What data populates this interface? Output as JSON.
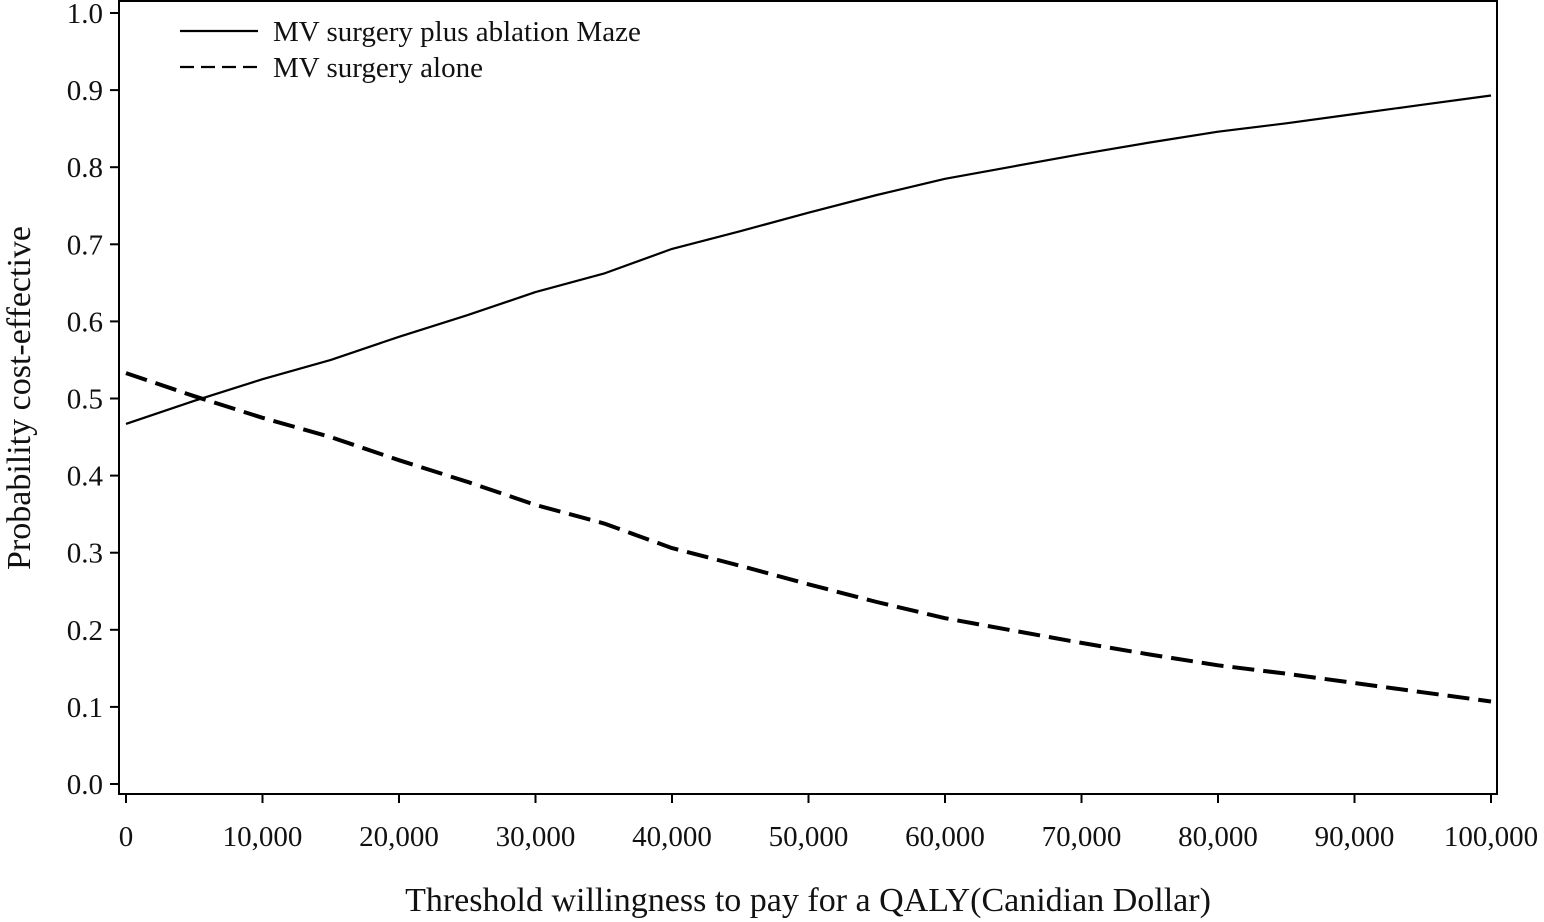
{
  "chart_data": {
    "type": "line",
    "title": "",
    "xlabel": "Threshold willingness to pay for a QALY(Canidian Dollar)",
    "ylabel": "Probability cost-effective",
    "xlim": [
      0,
      100000
    ],
    "ylim": [
      0,
      1.0
    ],
    "xticks": [
      0,
      10000,
      20000,
      30000,
      40000,
      50000,
      60000,
      70000,
      80000,
      90000,
      100000
    ],
    "xtick_labels": [
      "0",
      "10,000",
      "20,000",
      "30,000",
      "40,000",
      "50,000",
      "60,000",
      "70,000",
      "80,000",
      "90,000",
      "100,000"
    ],
    "yticks": [
      0.0,
      0.1,
      0.2,
      0.3,
      0.4,
      0.5,
      0.6,
      0.7,
      0.8,
      0.9,
      1.0
    ],
    "ytick_labels": [
      "0.0",
      "0.1",
      "0.2",
      "0.3",
      "0.4",
      "0.5",
      "0.6",
      "0.7",
      "0.8",
      "0.9",
      "1.0"
    ],
    "grid": false,
    "legend_position": "top-left",
    "series": [
      {
        "name": "MV surgery plus ablation Maze",
        "style": "solid",
        "color": "#000000",
        "x": [
          0,
          5000,
          10000,
          15000,
          20000,
          25000,
          30000,
          35000,
          40000,
          45000,
          50000,
          55000,
          60000,
          65000,
          70000,
          75000,
          80000,
          85000,
          90000,
          95000,
          100000
        ],
        "y": [
          0.467,
          0.497,
          0.525,
          0.55,
          0.58,
          0.608,
          0.638,
          0.662,
          0.694,
          0.717,
          0.741,
          0.764,
          0.785,
          0.801,
          0.817,
          0.832,
          0.846,
          0.857,
          0.869,
          0.881,
          0.893
        ]
      },
      {
        "name": "MV surgery alone",
        "style": "dashed",
        "color": "#000000",
        "x": [
          0,
          5000,
          10000,
          15000,
          20000,
          25000,
          30000,
          35000,
          40000,
          45000,
          50000,
          55000,
          60000,
          65000,
          70000,
          75000,
          80000,
          85000,
          90000,
          95000,
          100000
        ],
        "y": [
          0.533,
          0.503,
          0.475,
          0.45,
          0.42,
          0.392,
          0.362,
          0.338,
          0.306,
          0.283,
          0.259,
          0.236,
          0.215,
          0.199,
          0.183,
          0.168,
          0.154,
          0.143,
          0.131,
          0.119,
          0.107
        ]
      }
    ]
  }
}
